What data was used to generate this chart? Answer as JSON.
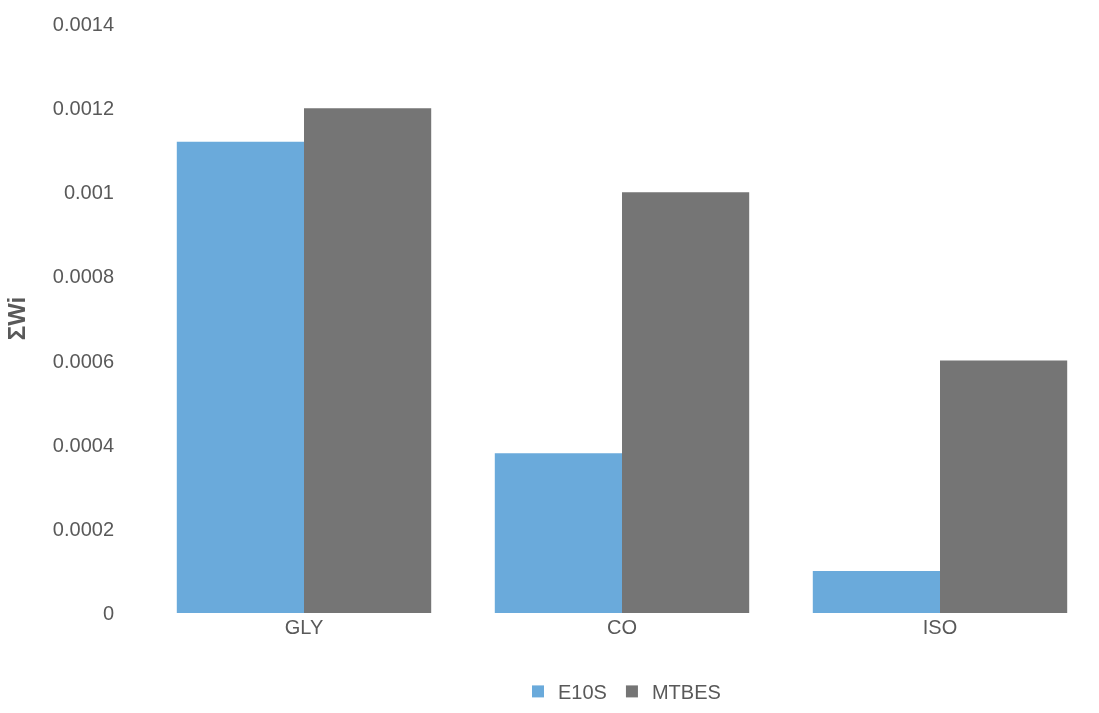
{
  "chart_data": {
    "type": "bar",
    "ylabel": "ΣWi",
    "categories": [
      "GLY",
      "CO",
      "ISO"
    ],
    "series": [
      {
        "name": "E10S",
        "color": "#6aaadb",
        "values": [
          0.00112,
          0.00038,
          0.0001
        ]
      },
      {
        "name": "MTBES",
        "color": "#757575",
        "values": [
          0.0012,
          0.001,
          0.0006
        ]
      }
    ],
    "ylim": [
      0,
      0.0014
    ],
    "yticks": [
      0,
      0.0002,
      0.0004,
      0.0006,
      0.0008,
      0.001,
      0.0012,
      0.0014
    ],
    "legend": "bottom"
  }
}
